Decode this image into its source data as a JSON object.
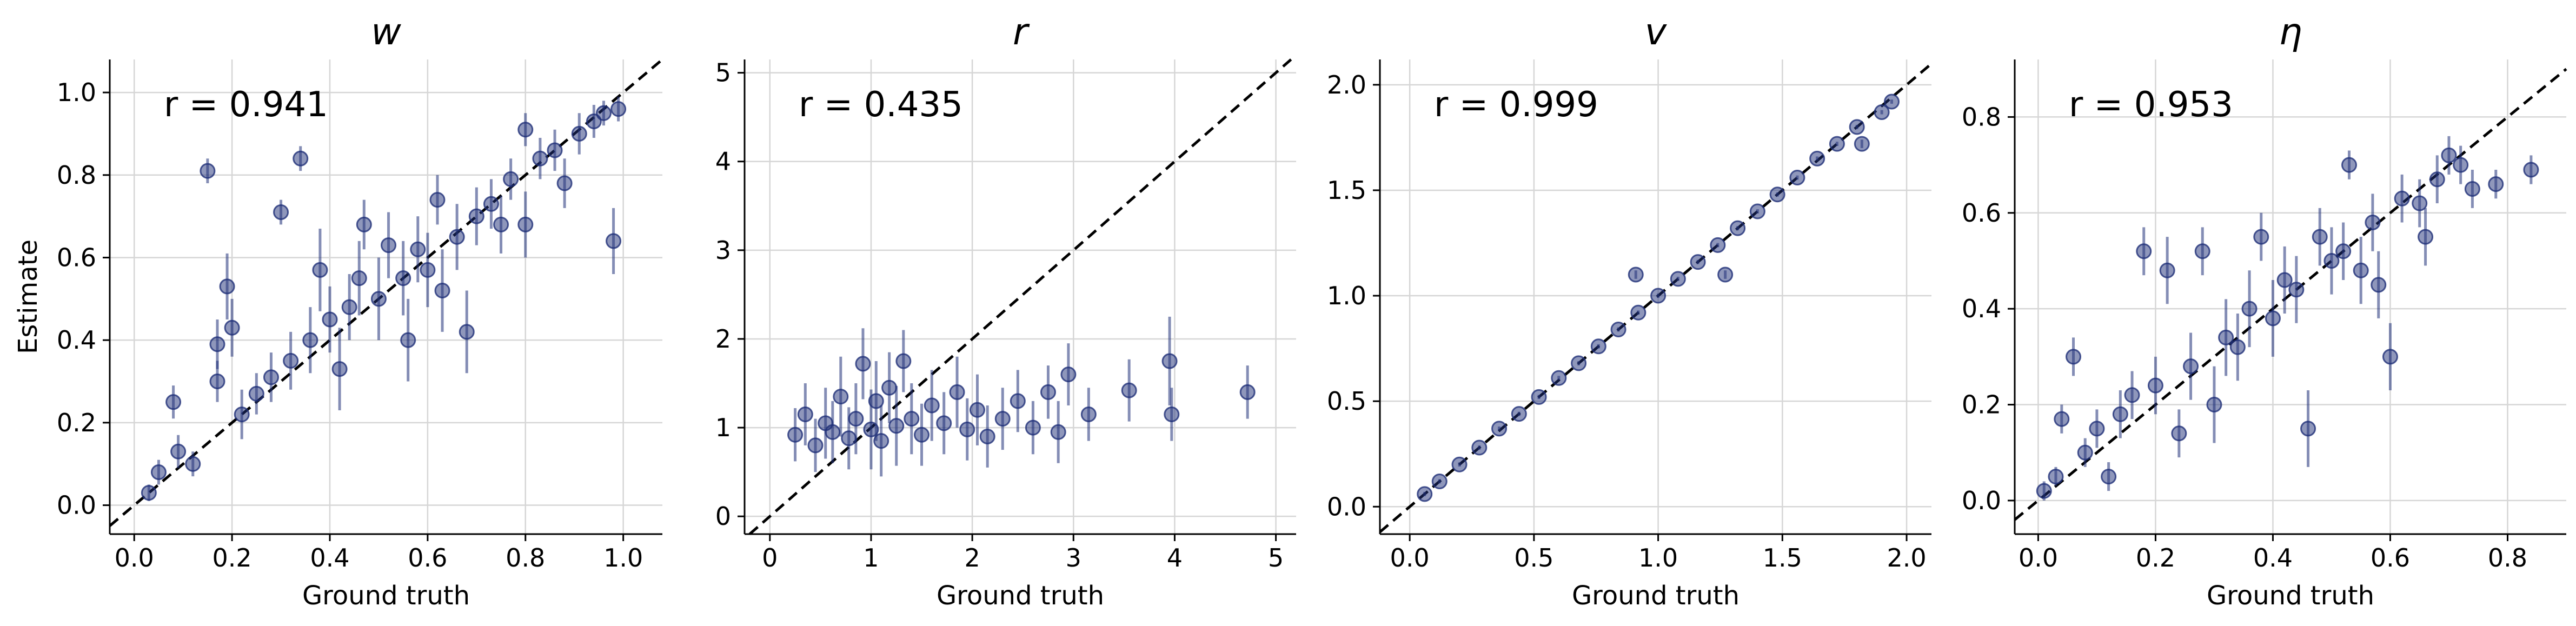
{
  "chart_data": [
    {
      "type": "scatter",
      "title": "w",
      "xlabel": "Ground truth",
      "ylabel": "Estimate",
      "xlim": [
        -0.05,
        1.08
      ],
      "ylim": [
        -0.07,
        1.08
      ],
      "xticks": [
        "0.0",
        "0.2",
        "0.4",
        "0.6",
        "0.8",
        "1.0"
      ],
      "yticks": [
        "0.0",
        "0.2",
        "0.4",
        "0.6",
        "0.8",
        "1.0"
      ],
      "annotation": "r = 0.941",
      "grid": true,
      "reference_line": "y = x",
      "color": "#1f3078",
      "points": [
        {
          "x": 0.03,
          "y": 0.03,
          "err": 0.02
        },
        {
          "x": 0.05,
          "y": 0.08,
          "err": 0.03
        },
        {
          "x": 0.08,
          "y": 0.25,
          "err": 0.04
        },
        {
          "x": 0.09,
          "y": 0.13,
          "err": 0.04
        },
        {
          "x": 0.12,
          "y": 0.1,
          "err": 0.03
        },
        {
          "x": 0.15,
          "y": 0.81,
          "err": 0.03
        },
        {
          "x": 0.17,
          "y": 0.39,
          "err": 0.06
        },
        {
          "x": 0.17,
          "y": 0.3,
          "err": 0.05
        },
        {
          "x": 0.19,
          "y": 0.53,
          "err": 0.08
        },
        {
          "x": 0.2,
          "y": 0.43,
          "err": 0.07
        },
        {
          "x": 0.22,
          "y": 0.22,
          "err": 0.06
        },
        {
          "x": 0.25,
          "y": 0.27,
          "err": 0.05
        },
        {
          "x": 0.28,
          "y": 0.31,
          "err": 0.06
        },
        {
          "x": 0.3,
          "y": 0.71,
          "err": 0.03
        },
        {
          "x": 0.32,
          "y": 0.35,
          "err": 0.07
        },
        {
          "x": 0.34,
          "y": 0.84,
          "err": 0.03
        },
        {
          "x": 0.36,
          "y": 0.4,
          "err": 0.08
        },
        {
          "x": 0.38,
          "y": 0.57,
          "err": 0.1
        },
        {
          "x": 0.4,
          "y": 0.45,
          "err": 0.08
        },
        {
          "x": 0.42,
          "y": 0.33,
          "err": 0.1
        },
        {
          "x": 0.44,
          "y": 0.48,
          "err": 0.08
        },
        {
          "x": 0.46,
          "y": 0.55,
          "err": 0.09
        },
        {
          "x": 0.47,
          "y": 0.68,
          "err": 0.06
        },
        {
          "x": 0.5,
          "y": 0.5,
          "err": 0.1
        },
        {
          "x": 0.52,
          "y": 0.63,
          "err": 0.08
        },
        {
          "x": 0.55,
          "y": 0.55,
          "err": 0.09
        },
        {
          "x": 0.56,
          "y": 0.4,
          "err": 0.1
        },
        {
          "x": 0.58,
          "y": 0.62,
          "err": 0.08
        },
        {
          "x": 0.6,
          "y": 0.57,
          "err": 0.09
        },
        {
          "x": 0.62,
          "y": 0.74,
          "err": 0.06
        },
        {
          "x": 0.63,
          "y": 0.52,
          "err": 0.1
        },
        {
          "x": 0.66,
          "y": 0.65,
          "err": 0.08
        },
        {
          "x": 0.68,
          "y": 0.42,
          "err": 0.1
        },
        {
          "x": 0.7,
          "y": 0.7,
          "err": 0.07
        },
        {
          "x": 0.73,
          "y": 0.73,
          "err": 0.06
        },
        {
          "x": 0.75,
          "y": 0.68,
          "err": 0.07
        },
        {
          "x": 0.77,
          "y": 0.79,
          "err": 0.05
        },
        {
          "x": 0.8,
          "y": 0.91,
          "err": 0.04
        },
        {
          "x": 0.8,
          "y": 0.68,
          "err": 0.08
        },
        {
          "x": 0.83,
          "y": 0.84,
          "err": 0.05
        },
        {
          "x": 0.86,
          "y": 0.86,
          "err": 0.05
        },
        {
          "x": 0.88,
          "y": 0.78,
          "err": 0.06
        },
        {
          "x": 0.91,
          "y": 0.9,
          "err": 0.05
        },
        {
          "x": 0.94,
          "y": 0.93,
          "err": 0.04
        },
        {
          "x": 0.96,
          "y": 0.95,
          "err": 0.03
        },
        {
          "x": 0.98,
          "y": 0.64,
          "err": 0.08
        },
        {
          "x": 0.99,
          "y": 0.96,
          "err": 0.03
        }
      ]
    },
    {
      "type": "scatter",
      "title": "r",
      "xlabel": "Ground truth",
      "ylabel": "",
      "xlim": [
        -0.25,
        5.2
      ],
      "ylim": [
        -0.2,
        5.15
      ],
      "xticks": [
        "0",
        "1",
        "2",
        "3",
        "4",
        "5"
      ],
      "yticks": [
        "0",
        "1",
        "2",
        "3",
        "4",
        "5"
      ],
      "annotation": "r = 0.435",
      "grid": true,
      "reference_line": "y = x",
      "color": "#1f3078",
      "points": [
        {
          "x": 0.25,
          "y": 0.92,
          "err": 0.3
        },
        {
          "x": 0.35,
          "y": 1.15,
          "err": 0.35
        },
        {
          "x": 0.45,
          "y": 0.8,
          "err": 0.3
        },
        {
          "x": 0.55,
          "y": 1.05,
          "err": 0.4
        },
        {
          "x": 0.62,
          "y": 0.95,
          "err": 0.35
        },
        {
          "x": 0.7,
          "y": 1.35,
          "err": 0.45
        },
        {
          "x": 0.78,
          "y": 0.88,
          "err": 0.35
        },
        {
          "x": 0.85,
          "y": 1.1,
          "err": 0.4
        },
        {
          "x": 0.92,
          "y": 1.72,
          "err": 0.4
        },
        {
          "x": 1.0,
          "y": 0.98,
          "err": 0.45
        },
        {
          "x": 1.05,
          "y": 1.3,
          "err": 0.45
        },
        {
          "x": 1.1,
          "y": 0.85,
          "err": 0.4
        },
        {
          "x": 1.18,
          "y": 1.45,
          "err": 0.4
        },
        {
          "x": 1.25,
          "y": 1.02,
          "err": 0.45
        },
        {
          "x": 1.32,
          "y": 1.75,
          "err": 0.35
        },
        {
          "x": 1.4,
          "y": 1.1,
          "err": 0.4
        },
        {
          "x": 1.5,
          "y": 0.92,
          "err": 0.35
        },
        {
          "x": 1.6,
          "y": 1.25,
          "err": 0.4
        },
        {
          "x": 1.72,
          "y": 1.05,
          "err": 0.35
        },
        {
          "x": 1.85,
          "y": 1.4,
          "err": 0.4
        },
        {
          "x": 1.95,
          "y": 0.98,
          "err": 0.35
        },
        {
          "x": 2.05,
          "y": 1.2,
          "err": 0.4
        },
        {
          "x": 2.15,
          "y": 0.9,
          "err": 0.35
        },
        {
          "x": 2.3,
          "y": 1.1,
          "err": 0.35
        },
        {
          "x": 2.45,
          "y": 1.3,
          "err": 0.35
        },
        {
          "x": 2.6,
          "y": 1.0,
          "err": 0.3
        },
        {
          "x": 2.75,
          "y": 1.4,
          "err": 0.3
        },
        {
          "x": 2.85,
          "y": 0.95,
          "err": 0.35
        },
        {
          "x": 2.95,
          "y": 1.6,
          "err": 0.35
        },
        {
          "x": 3.15,
          "y": 1.15,
          "err": 0.3
        },
        {
          "x": 3.55,
          "y": 1.42,
          "err": 0.35
        },
        {
          "x": 3.95,
          "y": 1.75,
          "err": 0.5
        },
        {
          "x": 3.97,
          "y": 1.15,
          "err": 0.3
        },
        {
          "x": 4.72,
          "y": 1.4,
          "err": 0.3
        }
      ]
    },
    {
      "type": "scatter",
      "title": "v",
      "xlabel": "Ground truth",
      "ylabel": "",
      "xlim": [
        -0.12,
        2.1
      ],
      "ylim": [
        -0.13,
        2.12
      ],
      "xticks": [
        "0.0",
        "0.5",
        "1.0",
        "1.5",
        "2.0"
      ],
      "yticks": [
        "0.0",
        "0.5",
        "1.0",
        "1.5",
        "2.0"
      ],
      "annotation": "r = 0.999",
      "grid": true,
      "reference_line": "y = x",
      "color": "#1f3078",
      "points": [
        {
          "x": 0.06,
          "y": 0.06,
          "err": 0.01
        },
        {
          "x": 0.12,
          "y": 0.12,
          "err": 0.01
        },
        {
          "x": 0.2,
          "y": 0.2,
          "err": 0.01
        },
        {
          "x": 0.28,
          "y": 0.28,
          "err": 0.01
        },
        {
          "x": 0.36,
          "y": 0.37,
          "err": 0.01
        },
        {
          "x": 0.44,
          "y": 0.44,
          "err": 0.01
        },
        {
          "x": 0.52,
          "y": 0.52,
          "err": 0.01
        },
        {
          "x": 0.6,
          "y": 0.61,
          "err": 0.01
        },
        {
          "x": 0.68,
          "y": 0.68,
          "err": 0.01
        },
        {
          "x": 0.76,
          "y": 0.76,
          "err": 0.01
        },
        {
          "x": 0.84,
          "y": 0.84,
          "err": 0.01
        },
        {
          "x": 0.92,
          "y": 0.92,
          "err": 0.01
        },
        {
          "x": 0.91,
          "y": 1.1,
          "err": 0.02
        },
        {
          "x": 1.0,
          "y": 1.0,
          "err": 0.01
        },
        {
          "x": 1.08,
          "y": 1.08,
          "err": 0.01
        },
        {
          "x": 1.16,
          "y": 1.16,
          "err": 0.01
        },
        {
          "x": 1.24,
          "y": 1.24,
          "err": 0.01
        },
        {
          "x": 1.27,
          "y": 1.1,
          "err": 0.02
        },
        {
          "x": 1.32,
          "y": 1.32,
          "err": 0.01
        },
        {
          "x": 1.4,
          "y": 1.4,
          "err": 0.01
        },
        {
          "x": 1.48,
          "y": 1.48,
          "err": 0.01
        },
        {
          "x": 1.56,
          "y": 1.56,
          "err": 0.01
        },
        {
          "x": 1.64,
          "y": 1.65,
          "err": 0.01
        },
        {
          "x": 1.72,
          "y": 1.72,
          "err": 0.01
        },
        {
          "x": 1.8,
          "y": 1.8,
          "err": 0.01
        },
        {
          "x": 1.82,
          "y": 1.72,
          "err": 0.02
        },
        {
          "x": 1.9,
          "y": 1.87,
          "err": 0.01
        },
        {
          "x": 1.94,
          "y": 1.92,
          "err": 0.01
        }
      ]
    },
    {
      "type": "scatter",
      "title": "η",
      "xlabel": "Ground truth",
      "ylabel": "",
      "xlim": [
        -0.04,
        0.9
      ],
      "ylim": [
        -0.07,
        0.92
      ],
      "xticks": [
        "0.0",
        "0.2",
        "0.4",
        "0.6",
        "0.8"
      ],
      "yticks": [
        "0.0",
        "0.2",
        "0.4",
        "0.6",
        "0.8"
      ],
      "annotation": "r = 0.953",
      "grid": true,
      "reference_line": "y = x",
      "color": "#1f3078",
      "points": [
        {
          "x": 0.01,
          "y": 0.02,
          "err": 0.02
        },
        {
          "x": 0.03,
          "y": 0.05,
          "err": 0.02
        },
        {
          "x": 0.04,
          "y": 0.17,
          "err": 0.03
        },
        {
          "x": 0.06,
          "y": 0.3,
          "err": 0.04
        },
        {
          "x": 0.08,
          "y": 0.1,
          "err": 0.03
        },
        {
          "x": 0.1,
          "y": 0.15,
          "err": 0.04
        },
        {
          "x": 0.12,
          "y": 0.05,
          "err": 0.03
        },
        {
          "x": 0.14,
          "y": 0.18,
          "err": 0.05
        },
        {
          "x": 0.16,
          "y": 0.22,
          "err": 0.05
        },
        {
          "x": 0.18,
          "y": 0.52,
          "err": 0.05
        },
        {
          "x": 0.2,
          "y": 0.24,
          "err": 0.06
        },
        {
          "x": 0.22,
          "y": 0.48,
          "err": 0.07
        },
        {
          "x": 0.24,
          "y": 0.14,
          "err": 0.05
        },
        {
          "x": 0.26,
          "y": 0.28,
          "err": 0.07
        },
        {
          "x": 0.28,
          "y": 0.52,
          "err": 0.05
        },
        {
          "x": 0.3,
          "y": 0.2,
          "err": 0.08
        },
        {
          "x": 0.32,
          "y": 0.34,
          "err": 0.08
        },
        {
          "x": 0.34,
          "y": 0.32,
          "err": 0.07
        },
        {
          "x": 0.36,
          "y": 0.4,
          "err": 0.08
        },
        {
          "x": 0.38,
          "y": 0.55,
          "err": 0.05
        },
        {
          "x": 0.4,
          "y": 0.38,
          "err": 0.08
        },
        {
          "x": 0.42,
          "y": 0.46,
          "err": 0.07
        },
        {
          "x": 0.44,
          "y": 0.44,
          "err": 0.07
        },
        {
          "x": 0.46,
          "y": 0.15,
          "err": 0.08
        },
        {
          "x": 0.48,
          "y": 0.55,
          "err": 0.06
        },
        {
          "x": 0.5,
          "y": 0.5,
          "err": 0.07
        },
        {
          "x": 0.52,
          "y": 0.52,
          "err": 0.06
        },
        {
          "x": 0.53,
          "y": 0.7,
          "err": 0.03
        },
        {
          "x": 0.55,
          "y": 0.48,
          "err": 0.07
        },
        {
          "x": 0.57,
          "y": 0.58,
          "err": 0.06
        },
        {
          "x": 0.58,
          "y": 0.45,
          "err": 0.07
        },
        {
          "x": 0.6,
          "y": 0.3,
          "err": 0.07
        },
        {
          "x": 0.62,
          "y": 0.63,
          "err": 0.05
        },
        {
          "x": 0.65,
          "y": 0.62,
          "err": 0.05
        },
        {
          "x": 0.66,
          "y": 0.55,
          "err": 0.06
        },
        {
          "x": 0.68,
          "y": 0.67,
          "err": 0.05
        },
        {
          "x": 0.7,
          "y": 0.72,
          "err": 0.04
        },
        {
          "x": 0.72,
          "y": 0.7,
          "err": 0.04
        },
        {
          "x": 0.74,
          "y": 0.65,
          "err": 0.04
        },
        {
          "x": 0.78,
          "y": 0.66,
          "err": 0.03
        },
        {
          "x": 0.84,
          "y": 0.69,
          "err": 0.03
        }
      ]
    }
  ]
}
